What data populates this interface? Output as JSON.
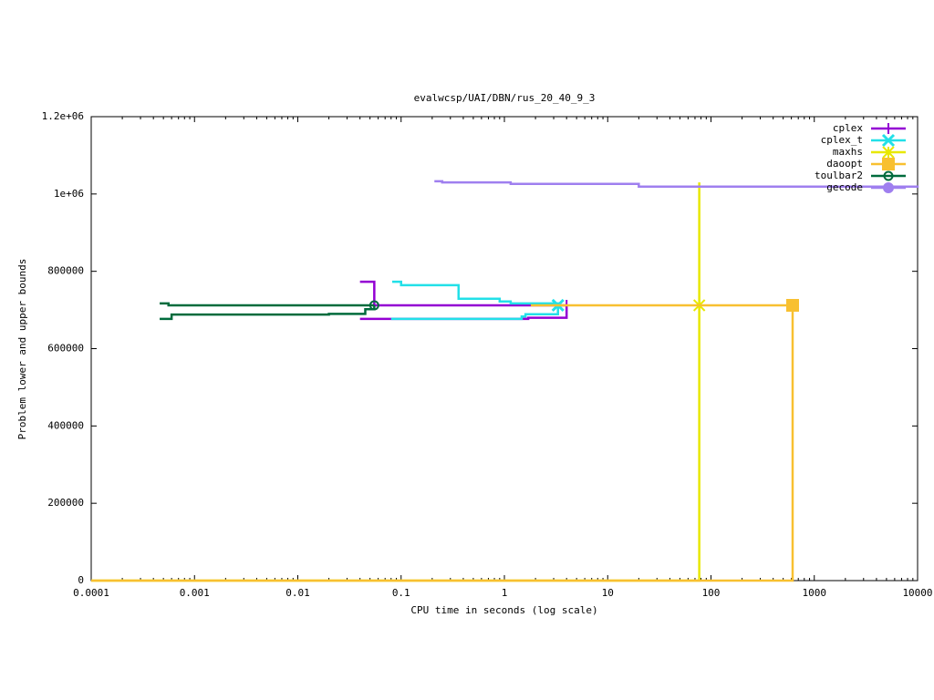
{
  "chart_data": {
    "type": "line",
    "title": "evalwcsp/UAI/DBN/rus_20_40_9_3",
    "x_label": "CPU time in seconds (log scale)",
    "y_label": "Problem lower and upper bounds",
    "x_log": true,
    "xlim": [
      0.0001,
      10000
    ],
    "xticks": [
      0.0001,
      0.001,
      0.01,
      0.1,
      1,
      10,
      100,
      1000,
      10000
    ],
    "ylim": [
      0,
      1200000
    ],
    "yticks": [
      0,
      200000,
      400000,
      600000,
      800000,
      {
        "value": 1000000,
        "label": "1e+06"
      },
      {
        "value": 1200000,
        "label": "1.2e+06"
      }
    ],
    "legend": "top-right",
    "step": true,
    "series": [
      {
        "name": "cplex",
        "color": "#9400d3",
        "point": "plus",
        "x": [
          0.04,
          0.055,
          4.0,
          null,
          0.04,
          1.7,
          4.0
        ],
        "values": [
          773000,
          712000,
          712000,
          null,
          677000,
          680000,
          712000
        ]
      },
      {
        "name": "cplex_t",
        "color": "#22e0e8",
        "point": "cross",
        "x": [
          0.082,
          0.1,
          0.36,
          0.9,
          1.15,
          3.3,
          null,
          0.08,
          1.47,
          1.6,
          3.3
        ],
        "values": [
          773000,
          764000,
          729000,
          722000,
          717000,
          712000,
          null,
          677000,
          683000,
          689000,
          712000
        ]
      },
      {
        "name": "maxhs",
        "color": "#e8e800",
        "point": "star",
        "x": [
          0.0001,
          77,
          77
        ],
        "values": [
          0,
          1030000,
          712000
        ]
      },
      {
        "name": "daoopt",
        "color": "#f8c030",
        "point": "square",
        "x": [
          1.8,
          617,
          null,
          0.0001,
          617
        ],
        "values": [
          712000,
          712000,
          null,
          0,
          712000
        ]
      },
      {
        "name": "toulbar2",
        "color": "#006b3c",
        "point": "circle",
        "x": [
          0.00046,
          0.00056,
          0.055,
          null,
          0.00046,
          0.0006,
          0.02,
          0.045,
          0.055
        ],
        "values": [
          717000,
          712000,
          712000,
          null,
          677000,
          688000,
          690000,
          702000,
          712000
        ]
      },
      {
        "name": "gecode",
        "color": "#9f7fef",
        "point": "disc",
        "x": [
          0.21,
          0.25,
          1.15,
          20,
          10000
        ],
        "values": [
          1033000,
          1030000,
          1026000,
          1019000,
          1016000
        ]
      }
    ]
  }
}
